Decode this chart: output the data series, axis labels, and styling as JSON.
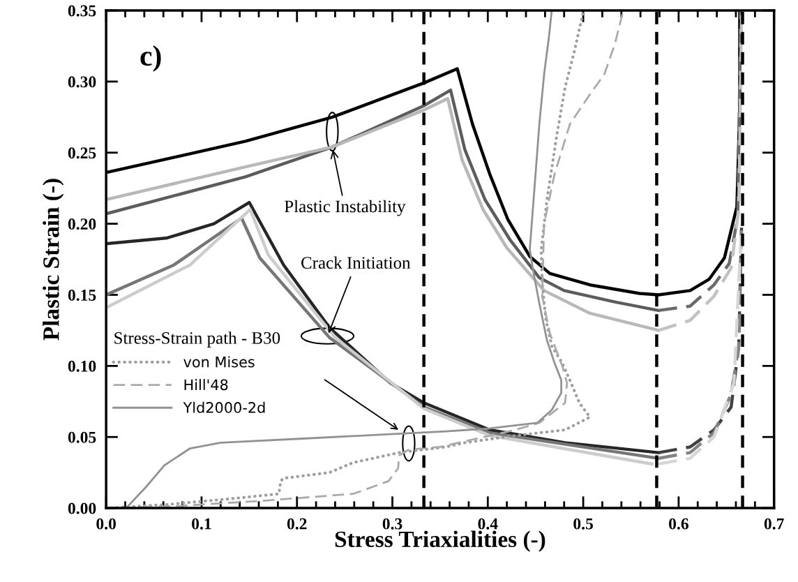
{
  "chart_data": {
    "type": "line",
    "xlabel": "Stress Triaxialities (-)",
    "ylabel": "Plastic Strain (-)",
    "legend_title": "Stress-Strain path - B30",
    "legend": "left",
    "xlim": [
      0,
      0.7
    ],
    "ylim": [
      0,
      0.35
    ],
    "xticks": [
      {
        "value": 0,
        "label": "0.0"
      },
      0.1,
      0.2,
      0.3,
      0.4,
      0.5,
      0.6,
      0.7
    ],
    "yticks": [
      {
        "value": 0,
        "label": "0.00"
      },
      {
        "value": 0.05,
        "label": "0.05"
      },
      {
        "value": 0.1,
        "label": "0.10"
      },
      {
        "value": 0.15,
        "label": "0.15"
      },
      {
        "value": 0.2,
        "label": "0.20"
      },
      {
        "value": 0.25,
        "label": "0.25"
      },
      {
        "value": 0.3,
        "label": "0.30"
      },
      {
        "value": 0.35,
        "label": "0.35"
      }
    ],
    "grid": false,
    "ref_lines": [
      {
        "axis": "x",
        "value": 0.333,
        "color": "#000000",
        "line_style": "dashed"
      },
      {
        "axis": "x",
        "value": 0.577,
        "color": "#000000",
        "line_style": "dashed"
      },
      {
        "axis": "x",
        "value": 0.667,
        "color": "#000000",
        "line_style": "dashed"
      }
    ],
    "annotations": [
      "c)",
      {
        "text": "Plastic Instability",
        "x": 0.237,
        "y": 0.254
      },
      {
        "text": "Crack Initiation",
        "x": 0.232,
        "y": 0.121
      }
    ],
    "series": [
      {
        "color": "#000000",
        "line_style": "solid",
        "x": [
          0,
          0.146,
          0.237,
          0.333,
          0.368,
          0.384,
          0.402,
          0.421,
          0.444,
          0.465,
          0.507,
          0.559,
          0.579,
          0.612,
          0.632,
          0.648,
          0.661,
          0.664,
          0.664
        ],
        "values": [
          0.236,
          0.258,
          0.275,
          0.299,
          0.309,
          0.27,
          0.235,
          0.203,
          0.177,
          0.165,
          0.157,
          0.151,
          0.15,
          0.153,
          0.161,
          0.176,
          0.212,
          0.28,
          0.35
        ]
      },
      {
        "color": "#5c5c5c",
        "line_style": "solid",
        "x": [
          0,
          0.146,
          0.237,
          0.333,
          0.361,
          0.376,
          0.397,
          0.423,
          0.454,
          0.48,
          0.533,
          0.579
        ],
        "values": [
          0.207,
          0.233,
          0.254,
          0.283,
          0.294,
          0.252,
          0.217,
          0.189,
          0.162,
          0.153,
          0.145,
          0.139
        ]
      },
      {
        "color": "#6a6a6a",
        "line_style": "dashed",
        "x": [
          0.579,
          0.612,
          0.637,
          0.653,
          0.662,
          0.665
        ],
        "values": [
          0.139,
          0.142,
          0.157,
          0.172,
          0.205,
          0.35
        ]
      },
      {
        "color": "#b8b8b8",
        "line_style": "solid",
        "x": [
          0,
          0.146,
          0.237,
          0.333,
          0.358,
          0.373,
          0.395,
          0.42,
          0.459,
          0.507,
          0.579
        ],
        "values": [
          0.217,
          0.24,
          0.254,
          0.28,
          0.288,
          0.245,
          0.21,
          0.183,
          0.153,
          0.137,
          0.125
        ]
      },
      {
        "color": "#c2c2c2",
        "line_style": "dashed",
        "x": [
          0.579,
          0.612,
          0.637,
          0.655,
          0.663,
          0.666
        ],
        "values": [
          0.125,
          0.132,
          0.149,
          0.169,
          0.21,
          0.35
        ]
      },
      {
        "color": "#262626",
        "line_style": "solid",
        "x": [
          0,
          0.064,
          0.113,
          0.15,
          0.186,
          0.234,
          0.298,
          0.333,
          0.402,
          0.481,
          0.579
        ],
        "values": [
          0.186,
          0.19,
          0.2,
          0.215,
          0.171,
          0.127,
          0.088,
          0.074,
          0.055,
          0.046,
          0.039
        ]
      },
      {
        "color": "#404040",
        "line_style": "dashed",
        "x": [
          0.579,
          0.612,
          0.637,
          0.655,
          0.663,
          0.666
        ],
        "values": [
          0.039,
          0.043,
          0.055,
          0.071,
          0.114,
          0.2
        ]
      },
      {
        "color": "#767676",
        "line_style": "solid",
        "x": [
          0,
          0.071,
          0.142,
          0.161,
          0.234,
          0.333,
          0.402,
          0.579
        ],
        "values": [
          0.15,
          0.171,
          0.204,
          0.176,
          0.12,
          0.071,
          0.053,
          0.035
        ]
      },
      {
        "color": "#848484",
        "line_style": "dashed",
        "x": [
          0.579,
          0.612,
          0.637,
          0.655,
          0.663,
          0.666
        ],
        "values": [
          0.035,
          0.039,
          0.053,
          0.08,
          0.114,
          0.2
        ]
      },
      {
        "color": "#cccccc",
        "line_style": "solid",
        "x": [
          0,
          0.088,
          0.151,
          0.17,
          0.24,
          0.333,
          0.402,
          0.572
        ],
        "values": [
          0.141,
          0.171,
          0.21,
          0.178,
          0.12,
          0.07,
          0.051,
          0.031
        ]
      },
      {
        "color": "#d6d6d6",
        "line_style": "dashed",
        "x": [
          0.579,
          0.612,
          0.637,
          0.658,
          0.666
        ],
        "values": [
          0.031,
          0.035,
          0.05,
          0.088,
          0.2
        ]
      },
      {
        "name": "von Mises",
        "color": "#9e9e9e",
        "line_style": "dotted",
        "x": [
          0,
          0.064,
          0.137,
          0.181,
          0.183,
          0.186,
          0.234,
          0.259,
          0.307,
          0.356,
          0.376,
          0.429,
          0.481,
          0.507,
          0.496,
          0.486,
          0.478,
          0.467,
          0.461,
          0.457,
          0.456,
          0.462,
          0.472,
          0.481,
          0.491,
          0.5
        ],
        "values": [
          0,
          0.0025,
          0.007,
          0.01,
          0.019,
          0.021,
          0.025,
          0.032,
          0.039,
          0.043,
          0.046,
          0.051,
          0.055,
          0.064,
          0.074,
          0.09,
          0.102,
          0.114,
          0.132,
          0.158,
          0.182,
          0.217,
          0.261,
          0.296,
          0.322,
          0.349
        ]
      },
      {
        "name": "Hill'48",
        "color": "#aaaaaa",
        "line_style": "dashed",
        "x": [
          0,
          0.076,
          0.161,
          0.259,
          0.296,
          0.306,
          0.307,
          0.317,
          0.35,
          0.389,
          0.429,
          0.454,
          0.481,
          0.483,
          0.478,
          0.465,
          0.457,
          0.459,
          0.47,
          0.486,
          0.507,
          0.522,
          0.533,
          0.542
        ],
        "values": [
          0,
          0.0015,
          0.005,
          0.01,
          0.019,
          0.028,
          0.037,
          0.041,
          0.043,
          0.049,
          0.055,
          0.06,
          0.074,
          0.088,
          0.1,
          0.123,
          0.149,
          0.2,
          0.235,
          0.27,
          0.291,
          0.305,
          0.326,
          0.35
        ]
      },
      {
        "name": "Yld2000-2d",
        "color": "#929292",
        "line_style": "solid",
        "x": [
          0,
          0.021,
          0.042,
          0.061,
          0.088,
          0.12,
          0.21,
          0.298,
          0.356,
          0.402,
          0.452,
          0.467,
          0.477,
          0.477,
          0.47,
          0.462,
          0.454,
          0.447,
          0.444,
          0.448,
          0.454,
          0.459,
          0.464,
          0.467
        ],
        "values": [
          0,
          0,
          0.015,
          0.03,
          0.042,
          0.046,
          0.049,
          0.052,
          0.054,
          0.056,
          0.06,
          0.069,
          0.081,
          0.09,
          0.102,
          0.118,
          0.144,
          0.169,
          0.182,
          0.217,
          0.27,
          0.305,
          0.331,
          0.35
        ]
      }
    ]
  }
}
